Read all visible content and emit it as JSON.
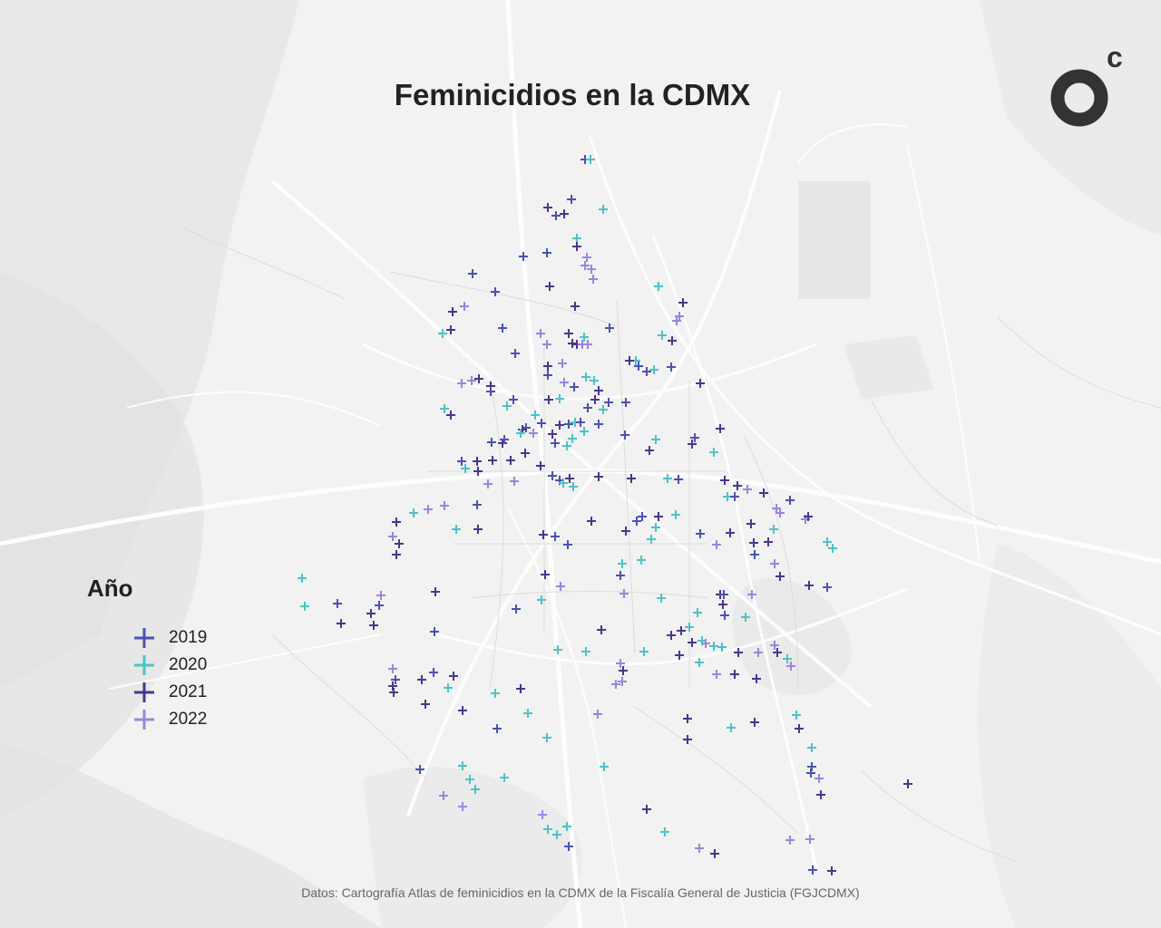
{
  "title": "Feminicidios en la CDMX",
  "source": "Datos: Cartografía Atlas de feminicidios en la CDMX de la Fiscalía General de Justicia (FGJCDMX)",
  "legend": {
    "title": "Año",
    "items": [
      {
        "label": "2019",
        "color": "#4a52b4"
      },
      {
        "label": "2020",
        "color": "#4cc3c7"
      },
      {
        "label": "2021",
        "color": "#4a3590"
      },
      {
        "label": "2022",
        "color": "#9b84e0"
      }
    ]
  },
  "logo": {
    "icon": "circle-logo-icon",
    "letter": "c",
    "color": "#333333"
  },
  "map": {
    "basemap": "light-gray-street-map",
    "marker": "plus-icon"
  }
}
